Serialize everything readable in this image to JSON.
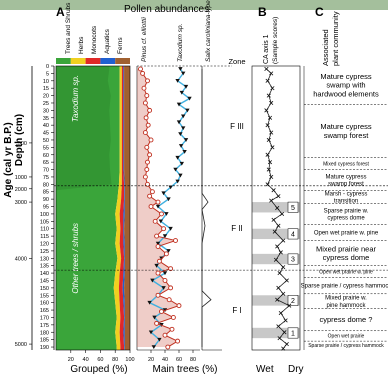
{
  "figure": {
    "panel_labels": [
      "A",
      "B",
      "C"
    ],
    "title_pollen": "Pollen abundances",
    "age_axis_label": "Age (cal yr B.P.)",
    "depth_axis_label": "Depth (cm)",
    "grouped_xlabel": "Grouped (%)",
    "main_trees_xlabel": "Main trees (%)",
    "ca_xlabel_left": "Wet",
    "ca_xlabel_right": "Dry",
    "ca_title_line1": "CA axis 1",
    "ca_title_line2": "(Sample scores)",
    "community_title_line1": "Associated",
    "community_title_line2": "plant community",
    "zone_header": "Zone",
    "grouped_area_labels": [
      "Taxodium sp.",
      "Other trees / shrubs"
    ],
    "grouped_legend": [
      "Trees and Shrubs",
      "Herbs",
      "Monocots",
      "Aquatics",
      "Ferns"
    ],
    "main_tree_series_labels": [
      "Pinus cf. elliottii",
      "Taxodium sp.",
      "Salix caroliniana-type"
    ],
    "grouped_ticks": [
      "20",
      "40",
      "60",
      "80",
      "100"
    ],
    "main_ticks": [
      "20",
      "40",
      "60",
      "80"
    ],
    "depth_ticks": [
      "0",
      "5",
      "10",
      "15",
      "20",
      "25",
      "30",
      "35",
      "40",
      "45",
      "50",
      "55",
      "60",
      "65",
      "70",
      "75",
      "80",
      "85",
      "90",
      "95",
      "100",
      "105",
      "110",
      "115",
      "120",
      "125",
      "130",
      "135",
      "140",
      "145",
      "150",
      "155",
      "160",
      "165",
      "170",
      "175",
      "180",
      "185",
      "190"
    ],
    "age_ticks": [
      "500",
      "1000",
      "2000",
      "3000",
      "4000",
      "5000"
    ]
  },
  "zones": [
    {
      "label": "F III",
      "top": 0,
      "bottom": 81
    },
    {
      "label": "F II",
      "top": 81,
      "bottom": 138
    },
    {
      "label": "F I",
      "top": 138,
      "bottom": 192
    }
  ],
  "communities": [
    {
      "lines": [
        "Mature cypress",
        "swamp with",
        "hardwood elements"
      ]
    },
    {
      "lines": [
        "Mature cypress",
        "swamp forest"
      ]
    },
    {
      "lines": [
        "Mixed cypress forest"
      ]
    },
    {
      "lines": [
        "Mature cypress",
        "swamp forest"
      ]
    },
    {
      "lines": [
        "Marsh - cypress",
        "transition"
      ]
    },
    {
      "lines": [
        "Sparse prairie w.",
        "cypress dome"
      ]
    },
    {
      "lines": [
        "Open wet prairie w. pine"
      ]
    },
    {
      "lines": [
        "Mixed prairie near",
        "cypress dome"
      ]
    },
    {
      "lines": [
        "Open wet prairie w. pine"
      ]
    },
    {
      "lines": [
        "Sparse prairie / cypress hammock"
      ]
    },
    {
      "lines": [
        "Mixed prairie w.",
        "pine hammock"
      ]
    },
    {
      "lines": [
        "cypress dome ?"
      ]
    },
    {
      "lines": [
        "Open wet prairie"
      ]
    },
    {
      "lines": [
        "Sparse prairie / cypress hammock"
      ]
    }
  ],
  "ca_bands": [
    {
      "label": "5",
      "top": 92,
      "bottom": 99
    },
    {
      "label": "4",
      "top": 110,
      "bottom": 117
    },
    {
      "label": "3",
      "top": 127,
      "bottom": 134
    },
    {
      "label": "2",
      "top": 155,
      "bottom": 162
    },
    {
      "label": "1",
      "top": 177,
      "bottom": 184
    }
  ],
  "colors": {
    "trees": "#3aa53a",
    "trees_dark": "#2e8a2e",
    "herbs": "#f0d020",
    "monocots": "#e02828",
    "aquatics": "#2060d0",
    "ferns": "#a06030",
    "taxodium_line": "#40b0e0",
    "pinus_fill": "#d07060",
    "pinus_line": "#c03020",
    "band": "#c8c8c8"
  },
  "chart_data": [
    {
      "type": "area",
      "title": "Pollen abundances",
      "xlabel": "Grouped (%)",
      "ylabel": "Depth (cm)",
      "xlim": [
        0,
        100
      ],
      "ylim": [
        192,
        0
      ],
      "depths": [
        2,
        10,
        20,
        30,
        40,
        50,
        60,
        70,
        80,
        90,
        100,
        110,
        120,
        130,
        140,
        150,
        160,
        170,
        180,
        190
      ],
      "series": [
        {
          "name": "Trees and Shrubs",
          "values": [
            86,
            86,
            86,
            86,
            86,
            86,
            86,
            86,
            85,
            83,
            80,
            82,
            80,
            83,
            80,
            78,
            80,
            82,
            80,
            82
          ]
        },
        {
          "name": "Herbs",
          "values": [
            3,
            3,
            3,
            3,
            3,
            3,
            3,
            3,
            4,
            5,
            6,
            5,
            6,
            5,
            6,
            7,
            6,
            5,
            6,
            5
          ]
        },
        {
          "name": "Monocots",
          "values": [
            2,
            2,
            2,
            2,
            2,
            2,
            2,
            2,
            3,
            4,
            5,
            4,
            5,
            4,
            5,
            5,
            5,
            5,
            5,
            5
          ]
        },
        {
          "name": "Aquatics",
          "values": [
            1,
            1,
            1,
            1,
            1,
            1,
            1,
            1,
            1,
            1,
            2,
            1,
            2,
            1,
            2,
            2,
            2,
            1,
            2,
            1
          ]
        },
        {
          "name": "Ferns",
          "values": [
            8,
            8,
            8,
            8,
            8,
            8,
            8,
            8,
            7,
            7,
            7,
            8,
            7,
            7,
            7,
            8,
            7,
            7,
            7,
            7
          ]
        }
      ],
      "taxodium_share": [
        72,
        70,
        74,
        72,
        73,
        74,
        72,
        73,
        75,
        0,
        0,
        0,
        0,
        0,
        0,
        0,
        0,
        0,
        0,
        0
      ]
    },
    {
      "type": "line",
      "xlabel": "Main trees (%)",
      "ylabel": "Depth (cm)",
      "xlim": [
        0,
        90
      ],
      "ylim": [
        192,
        0
      ],
      "series": [
        {
          "name": "Pinus cf. elliottii",
          "points": [
            [
              5,
              2
            ],
            [
              8,
              5
            ],
            [
              15,
              10
            ],
            [
              10,
              15
            ],
            [
              14,
              20
            ],
            [
              12,
              25
            ],
            [
              18,
              30
            ],
            [
              13,
              35
            ],
            [
              16,
              40
            ],
            [
              12,
              45
            ],
            [
              20,
              50
            ],
            [
              14,
              55
            ],
            [
              18,
              60
            ],
            [
              15,
              65
            ],
            [
              14,
              70
            ],
            [
              12,
              75
            ],
            [
              15,
              80
            ],
            [
              22,
              85
            ],
            [
              18,
              88
            ],
            [
              30,
              92
            ],
            [
              20,
              95
            ],
            [
              35,
              100
            ],
            [
              26,
              105
            ],
            [
              38,
              110
            ],
            [
              28,
              115
            ],
            [
              55,
              118
            ],
            [
              30,
              122
            ],
            [
              42,
              127
            ],
            [
              32,
              132
            ],
            [
              48,
              137
            ],
            [
              30,
              140
            ],
            [
              40,
              145
            ],
            [
              48,
              150
            ],
            [
              30,
              155
            ],
            [
              46,
              158
            ],
            [
              60,
              162
            ],
            [
              35,
              166
            ],
            [
              52,
              170
            ],
            [
              28,
              174
            ],
            [
              50,
              178
            ],
            [
              40,
              182
            ],
            [
              58,
              186
            ],
            [
              44,
              190
            ]
          ]
        },
        {
          "name": "Taxodium sp.",
          "points": [
            [
              62,
              2
            ],
            [
              66,
              5
            ],
            [
              58,
              10
            ],
            [
              70,
              14
            ],
            [
              64,
              18
            ],
            [
              75,
              22
            ],
            [
              60,
              26
            ],
            [
              72,
              30
            ],
            [
              66,
              34
            ],
            [
              60,
              38
            ],
            [
              66,
              42
            ],
            [
              62,
              46
            ],
            [
              70,
              50
            ],
            [
              63,
              54
            ],
            [
              68,
              58
            ],
            [
              58,
              62
            ],
            [
              64,
              66
            ],
            [
              55,
              70
            ],
            [
              62,
              74
            ],
            [
              58,
              78
            ],
            [
              48,
              82
            ],
            [
              38,
              86
            ],
            [
              45,
              90
            ],
            [
              30,
              95
            ],
            [
              42,
              100
            ],
            [
              34,
              105
            ],
            [
              48,
              110
            ],
            [
              40,
              115
            ],
            [
              30,
              120
            ],
            [
              45,
              125
            ],
            [
              35,
              130
            ],
            [
              28,
              135
            ],
            [
              40,
              140
            ],
            [
              22,
              145
            ],
            [
              38,
              150
            ],
            [
              30,
              155
            ],
            [
              18,
              160
            ],
            [
              40,
              165
            ],
            [
              25,
              170
            ],
            [
              35,
              175
            ],
            [
              20,
              180
            ],
            [
              32,
              185
            ],
            [
              24,
              190
            ]
          ]
        },
        {
          "name": "Salix caroliniana-type",
          "points": [
            [
              0,
              2
            ],
            [
              0,
              50
            ],
            [
              0,
              86
            ],
            [
              6,
              92
            ],
            [
              0,
              97
            ],
            [
              3,
              108
            ],
            [
              0,
              120
            ],
            [
              0,
              140
            ],
            [
              0,
              152
            ],
            [
              9,
              158
            ],
            [
              0,
              163
            ],
            [
              0,
              190
            ]
          ]
        }
      ]
    },
    {
      "type": "line",
      "title": "CA axis 1 (Sample scores)",
      "xlabel": "",
      "ylabel": "Depth (cm)",
      "xlim": [
        -1,
        1
      ],
      "ylim": [
        192,
        0
      ],
      "series": [
        {
          "name": "CA axis 1",
          "points": [
            [
              -0.4,
              2
            ],
            [
              -0.2,
              5
            ],
            [
              -0.35,
              10
            ],
            [
              -0.15,
              15
            ],
            [
              -0.3,
              20
            ],
            [
              -0.2,
              25
            ],
            [
              -0.4,
              30
            ],
            [
              -0.25,
              35
            ],
            [
              -0.35,
              40
            ],
            [
              -0.2,
              45
            ],
            [
              -0.3,
              50
            ],
            [
              -0.15,
              55
            ],
            [
              -0.35,
              60
            ],
            [
              -0.25,
              65
            ],
            [
              -0.3,
              70
            ],
            [
              -0.2,
              75
            ],
            [
              -0.35,
              80
            ],
            [
              -0.1,
              84
            ],
            [
              0.1,
              88
            ],
            [
              -0.2,
              91
            ],
            [
              0.05,
              96
            ],
            [
              0.25,
              100
            ],
            [
              -0.1,
              104
            ],
            [
              0.1,
              108
            ],
            [
              -0.05,
              112
            ],
            [
              0.3,
              118
            ],
            [
              0.05,
              122
            ],
            [
              0.2,
              126
            ],
            [
              0.0,
              131
            ],
            [
              0.3,
              136
            ],
            [
              0.15,
              140
            ],
            [
              0.45,
              145
            ],
            [
              0.1,
              150
            ],
            [
              0.3,
              154
            ],
            [
              0.05,
              158
            ],
            [
              0.55,
              162
            ],
            [
              0.2,
              167
            ],
            [
              0.4,
              172
            ],
            [
              0.1,
              176
            ],
            [
              0.35,
              180
            ],
            [
              0.15,
              184
            ],
            [
              0.45,
              188
            ],
            [
              0.3,
              191
            ]
          ]
        }
      ]
    }
  ]
}
